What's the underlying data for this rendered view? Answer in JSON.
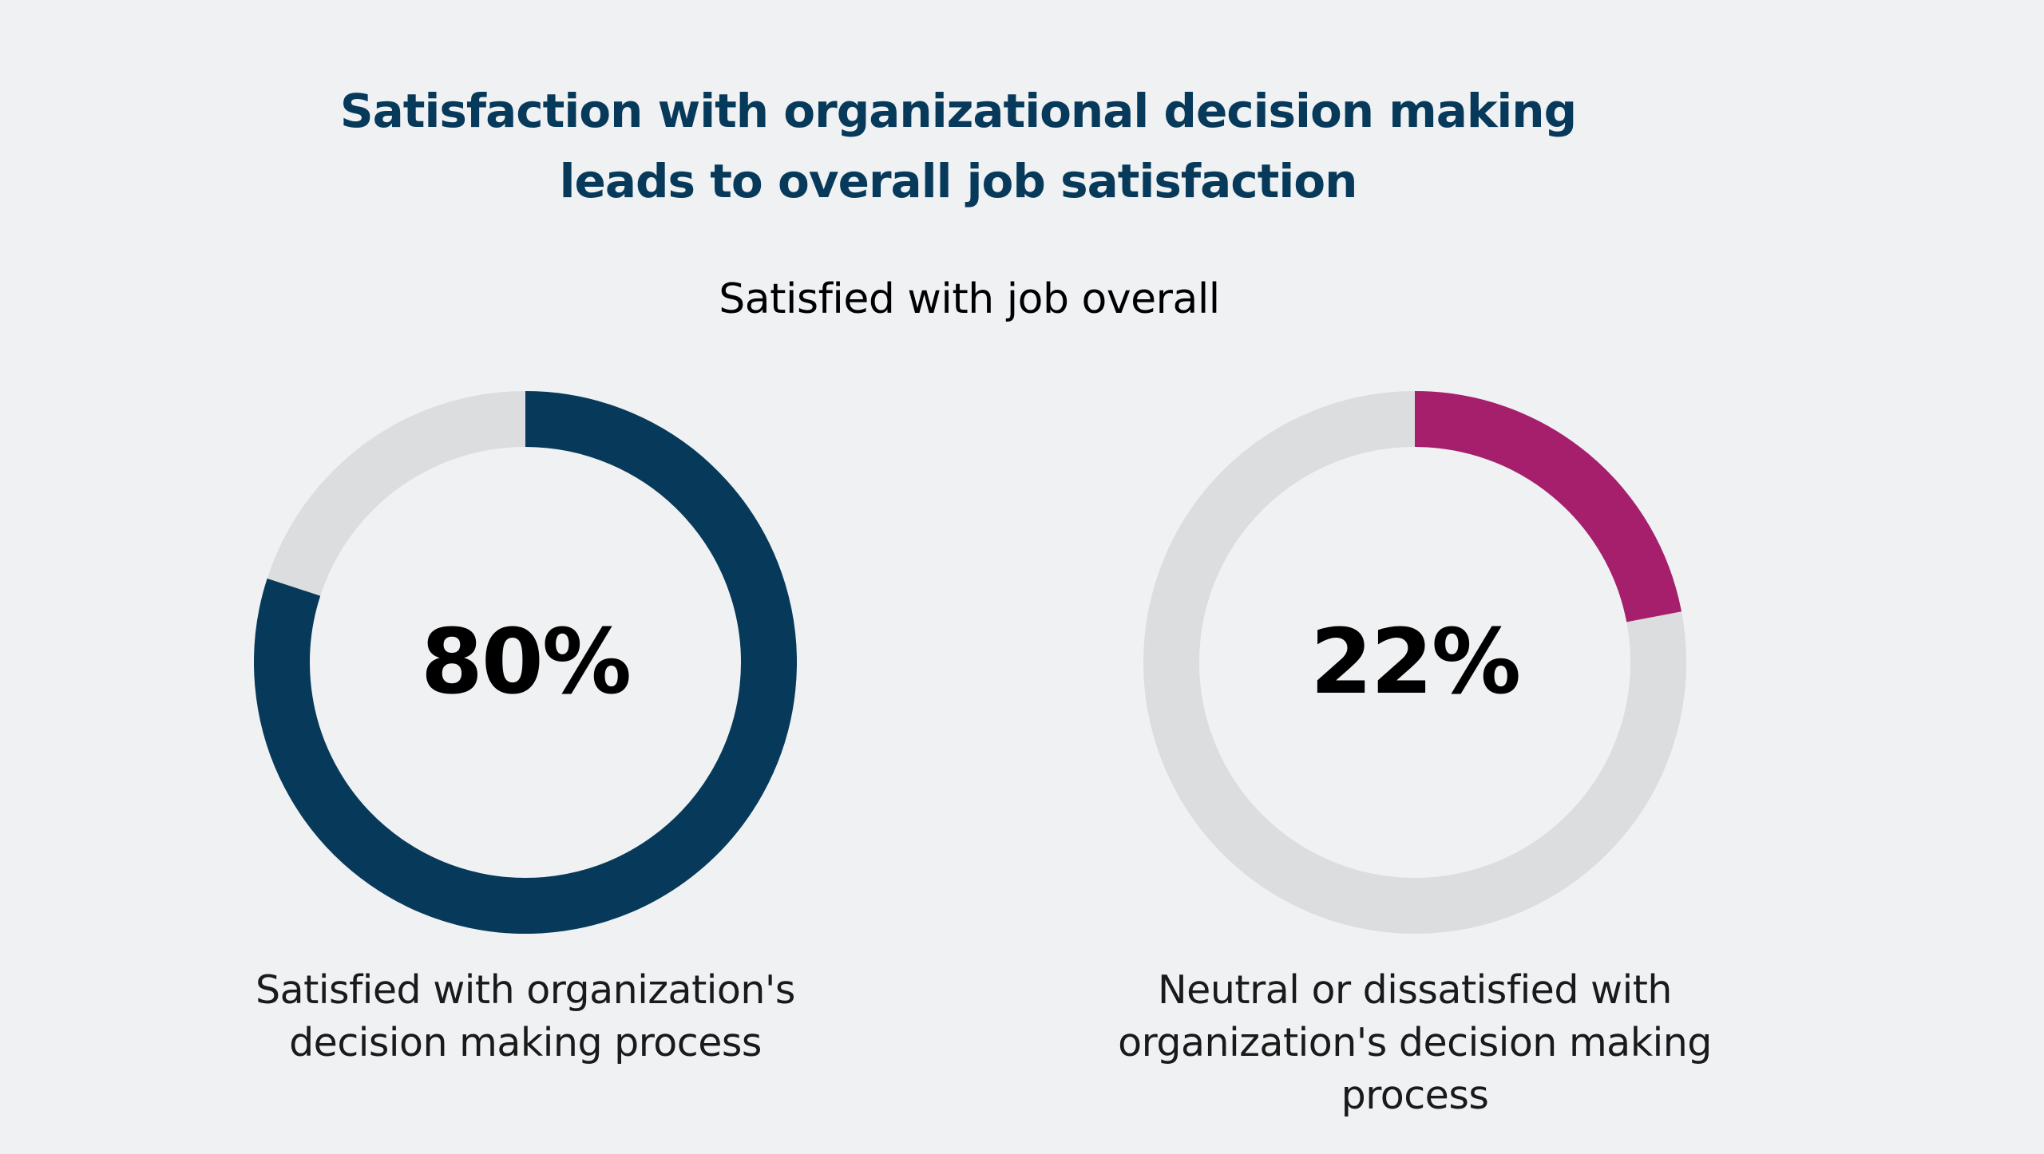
{
  "title": {
    "line1": "Satisfaction with organizational decision making",
    "line2": "leads to overall job satisfaction"
  },
  "subtitle": "Satisfied with job overall",
  "colors": {
    "background": "#eff1f3",
    "track": "#dcdddf",
    "left_series": "#073a5a",
    "right_series": "#a51f6d",
    "title": "#073a5a"
  },
  "chart_data": [
    {
      "type": "pie",
      "title": "Satisfied with job overall",
      "value": 80,
      "label": "80%",
      "color": "#073a5a",
      "caption": [
        "Satisfied with organization's",
        "decision making process"
      ]
    },
    {
      "type": "pie",
      "title": "Satisfied with job overall",
      "value": 22,
      "label": "22%",
      "color": "#a51f6d",
      "caption": [
        "Neutral or dissatisfied with",
        "organization's decision making process"
      ]
    }
  ]
}
